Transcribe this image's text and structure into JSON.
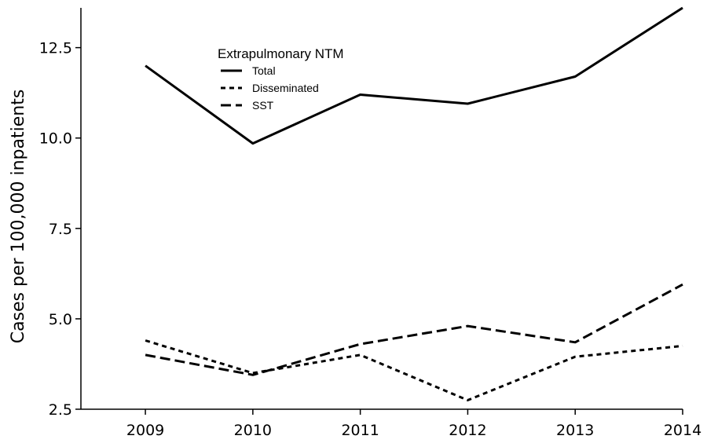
{
  "chart_data": {
    "type": "line",
    "ylabel": "Cases per 100,000 inpatients",
    "xlabel": "",
    "x": [
      2009,
      2010,
      2011,
      2012,
      2013,
      2014
    ],
    "x_tick_labels": [
      "2009",
      "2010",
      "2011",
      "2012",
      "2013",
      "2014"
    ],
    "xlim": [
      2008.4,
      2014
    ],
    "ylim": [
      2.5,
      13.6
    ],
    "y_ticks": [
      2.5,
      5.0,
      7.5,
      10.0,
      12.5
    ],
    "y_tick_labels": [
      "2.5",
      "5.0",
      "7.5",
      "10.0",
      "12.5"
    ],
    "grid": false,
    "legend": {
      "title": "Extrapulmonary NTM",
      "placement": "top-left"
    },
    "series": [
      {
        "name": "Total",
        "style": "solid",
        "values": [
          12.0,
          9.85,
          11.2,
          10.95,
          11.7,
          13.6
        ]
      },
      {
        "name": "Disseminated",
        "style": "dotted",
        "values": [
          4.4,
          3.5,
          4.0,
          2.75,
          3.95,
          4.25
        ]
      },
      {
        "name": "SST",
        "style": "dashed",
        "values": [
          4.0,
          3.45,
          4.3,
          4.8,
          4.35,
          5.95
        ]
      }
    ],
    "line_color": "#000000"
  }
}
